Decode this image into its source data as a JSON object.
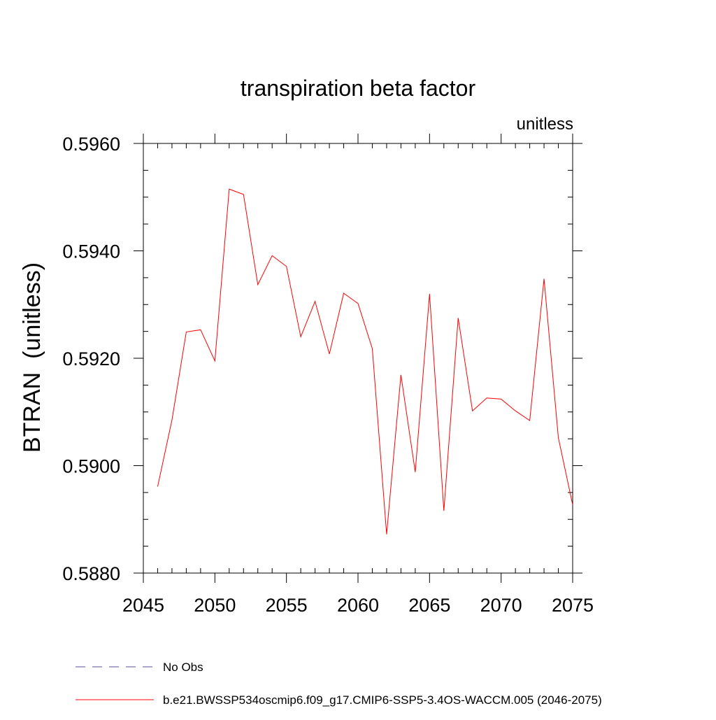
{
  "chart_data": {
    "type": "line",
    "title": "transpiration beta factor",
    "units_label": "unitless",
    "ylabel": "BTRAN  (unitless)",
    "xlabel": "",
    "xlim": [
      2045,
      2075
    ],
    "ylim": [
      0.588,
      0.596
    ],
    "x_major_ticks": [
      2045,
      2050,
      2055,
      2060,
      2065,
      2070,
      2075
    ],
    "x_tick_labels": [
      "2045",
      "2050",
      "2055",
      "2060",
      "2065",
      "2070",
      "2075"
    ],
    "x_minor_step": 1,
    "y_major_ticks": [
      0.588,
      0.59,
      0.592,
      0.594,
      0.596
    ],
    "y_tick_labels": [
      "0.5880",
      "0.5900",
      "0.5920",
      "0.5940",
      "0.5960"
    ],
    "y_minor_step": 0.0005,
    "grid": false,
    "series": [
      {
        "name": "b.e21.BWSSP534oscmip6.f09_g17.CMIP6-SSP5-3.4OS-WACCM.005 (2046-2075)",
        "color": "#ff0000",
        "style": "solid",
        "x": [
          2046,
          2047,
          2048,
          2049,
          2050,
          2051,
          2052,
          2053,
          2054,
          2055,
          2056,
          2057,
          2058,
          2059,
          2060,
          2061,
          2062,
          2063,
          2064,
          2065,
          2066,
          2067,
          2068,
          2069,
          2070,
          2071,
          2072,
          2073,
          2074,
          2075
        ],
        "values": [
          0.58961,
          0.59085,
          0.59249,
          0.59253,
          0.59195,
          0.59515,
          0.59505,
          0.59337,
          0.59391,
          0.59371,
          0.5924,
          0.59306,
          0.59208,
          0.59321,
          0.59302,
          0.59218,
          0.58872,
          0.59169,
          0.58988,
          0.5932,
          0.58916,
          0.59275,
          0.59102,
          0.59126,
          0.59124,
          0.59102,
          0.59084,
          0.59348,
          0.59052,
          0.58927
        ]
      }
    ],
    "legend": [
      {
        "label": "No Obs",
        "color": "#5b4f9a",
        "style": "dashed"
      },
      {
        "label": "b.e21.BWSSP534oscmip6.f09_g17.CMIP6-SSP5-3.4OS-WACCM.005 (2046-2075)",
        "color": "#ff0000",
        "style": "solid"
      }
    ],
    "legend_position": "bottom"
  }
}
